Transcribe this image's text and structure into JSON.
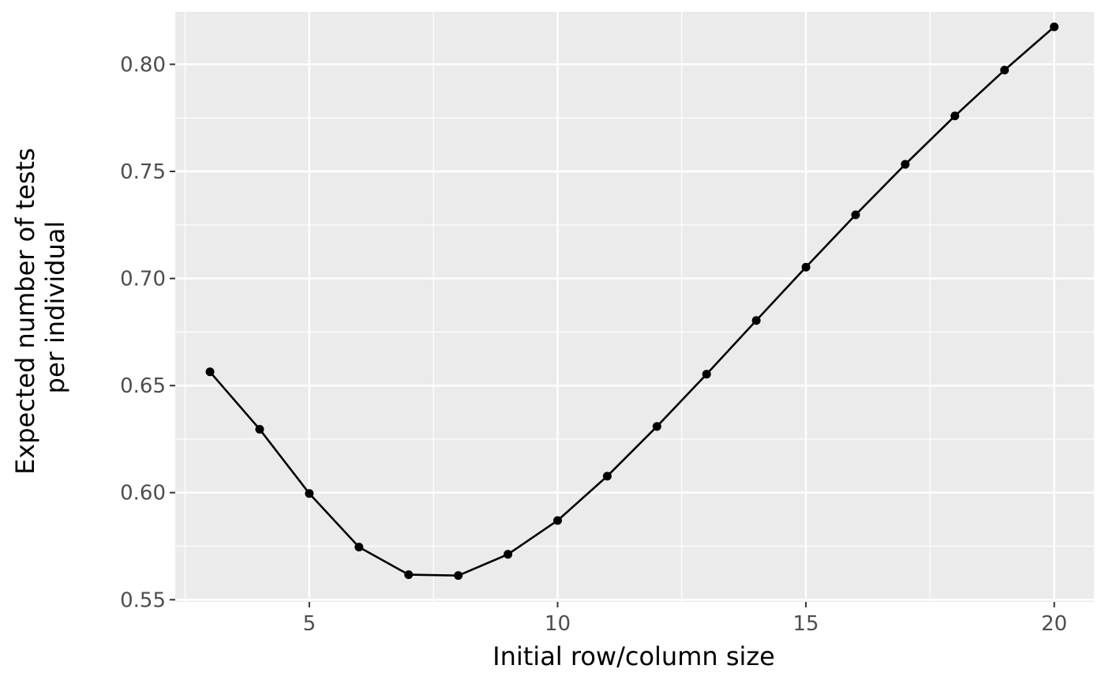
{
  "chart_data": {
    "type": "line",
    "title": "",
    "xlabel": "Initial row/column size",
    "ylabel_lines": [
      "Expected number of tests",
      "per individual"
    ],
    "x": [
      3,
      4,
      5,
      6,
      7,
      8,
      9,
      10,
      11,
      12,
      13,
      14,
      15,
      16,
      17,
      18,
      19,
      20
    ],
    "series": [
      {
        "values": [
          0.6564,
          0.6296,
          0.5996,
          0.5746,
          0.5617,
          0.5613,
          0.5712,
          0.587,
          0.6077,
          0.6309,
          0.6553,
          0.6804,
          0.7053,
          0.7297,
          0.7533,
          0.7759,
          0.7973,
          0.8175
        ],
        "markers": true
      }
    ],
    "xlim": [
      2.3,
      20.8
    ],
    "ylim": [
      0.549,
      0.8245
    ],
    "x_ticks": [
      5,
      10,
      15,
      20
    ],
    "x_tick_labels": [
      "5",
      "10",
      "15",
      "20"
    ],
    "x_minor_ticks": [
      2.5,
      7.5,
      12.5,
      17.5
    ],
    "y_ticks": [
      0.55,
      0.6,
      0.65,
      0.7,
      0.75,
      0.8
    ],
    "y_tick_labels": [
      "0.55",
      "0.60",
      "0.65",
      "0.70",
      "0.75",
      "0.80"
    ],
    "y_minor_ticks": [
      0.575,
      0.625,
      0.675,
      0.725,
      0.775
    ],
    "grid": true,
    "legend": "none",
    "colors": {
      "panel": "#ebebeb",
      "grid": "#ffffff",
      "line": "#000000",
      "point": "#000000",
      "tick_text": "#4d4d4d",
      "axis_title": "#000000",
      "tick_mark": "#333333"
    }
  }
}
